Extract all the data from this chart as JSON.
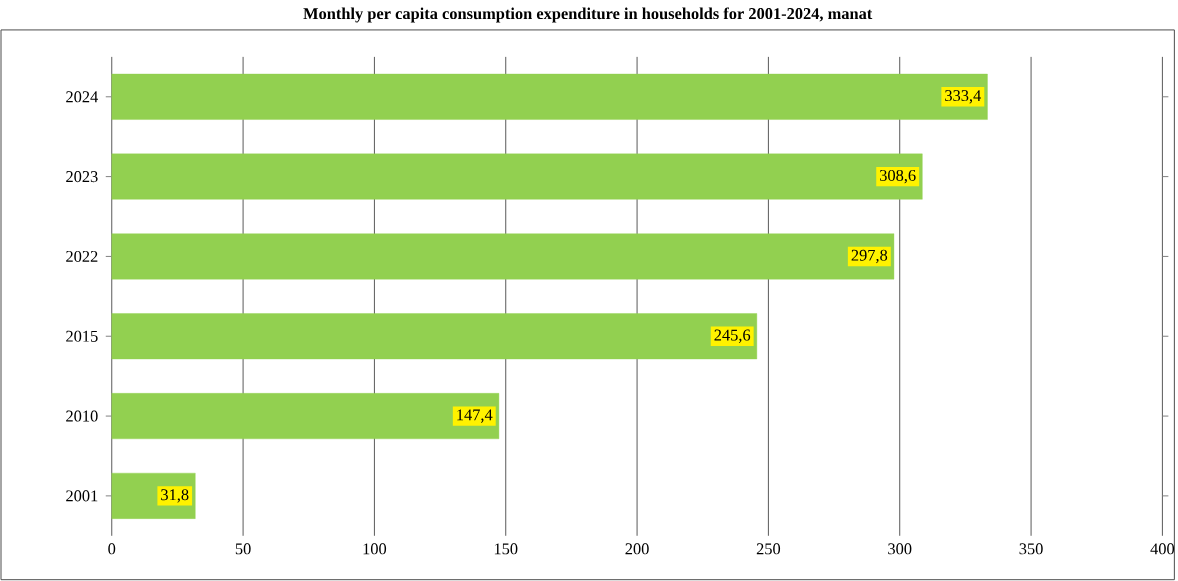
{
  "chart_data": {
    "type": "bar",
    "orientation": "horizontal",
    "title": "Monthly per capita consumption expenditure in households for 2001-2024, manat",
    "categories": [
      "2024",
      "2023",
      "2022",
      "2015",
      "2010",
      "2001"
    ],
    "values": [
      333.4,
      308.6,
      297.8,
      245.6,
      147.4,
      31.8
    ],
    "value_labels": [
      "333,4",
      "308,6",
      "297,8",
      "245,6",
      "147,4",
      "31,8"
    ],
    "color": "#92d050",
    "xlim": [
      0,
      400
    ],
    "xticks": [
      0,
      50,
      100,
      150,
      200,
      250,
      300,
      350,
      400
    ],
    "grid": "x"
  }
}
